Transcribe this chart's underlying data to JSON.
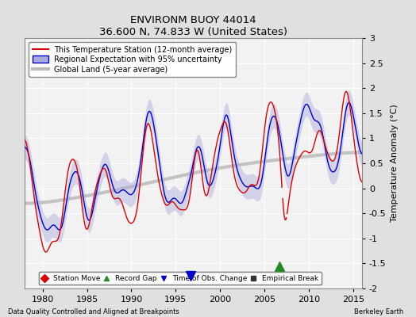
{
  "title": "ENVIRONM BUOY 44014",
  "subtitle": "36.600 N, 74.833 W (United States)",
  "ylabel": "Temperature Anomaly (°C)",
  "xlabel_left": "Data Quality Controlled and Aligned at Breakpoints",
  "xlabel_right": "Berkeley Earth",
  "xlim": [
    1978,
    2016
  ],
  "ylim": [
    -2,
    3
  ],
  "yticks": [
    -2,
    -1.5,
    -1,
    -0.5,
    0,
    0.5,
    1,
    1.5,
    2,
    2.5,
    3
  ],
  "xticks": [
    1980,
    1985,
    1990,
    1995,
    2000,
    2005,
    2010,
    2015
  ],
  "bg_color": "#e0e0e0",
  "plot_bg_color": "#f2f2f2",
  "red_color": "#dd0000",
  "blue_color": "#0000cc",
  "blue_fill_color": "#aaaadd",
  "gray_color": "#bbbbbb",
  "record_gap_x": 2006.7,
  "record_gap_y": -1.55,
  "time_obs_x": 1996.7,
  "time_obs_y": -1.75
}
